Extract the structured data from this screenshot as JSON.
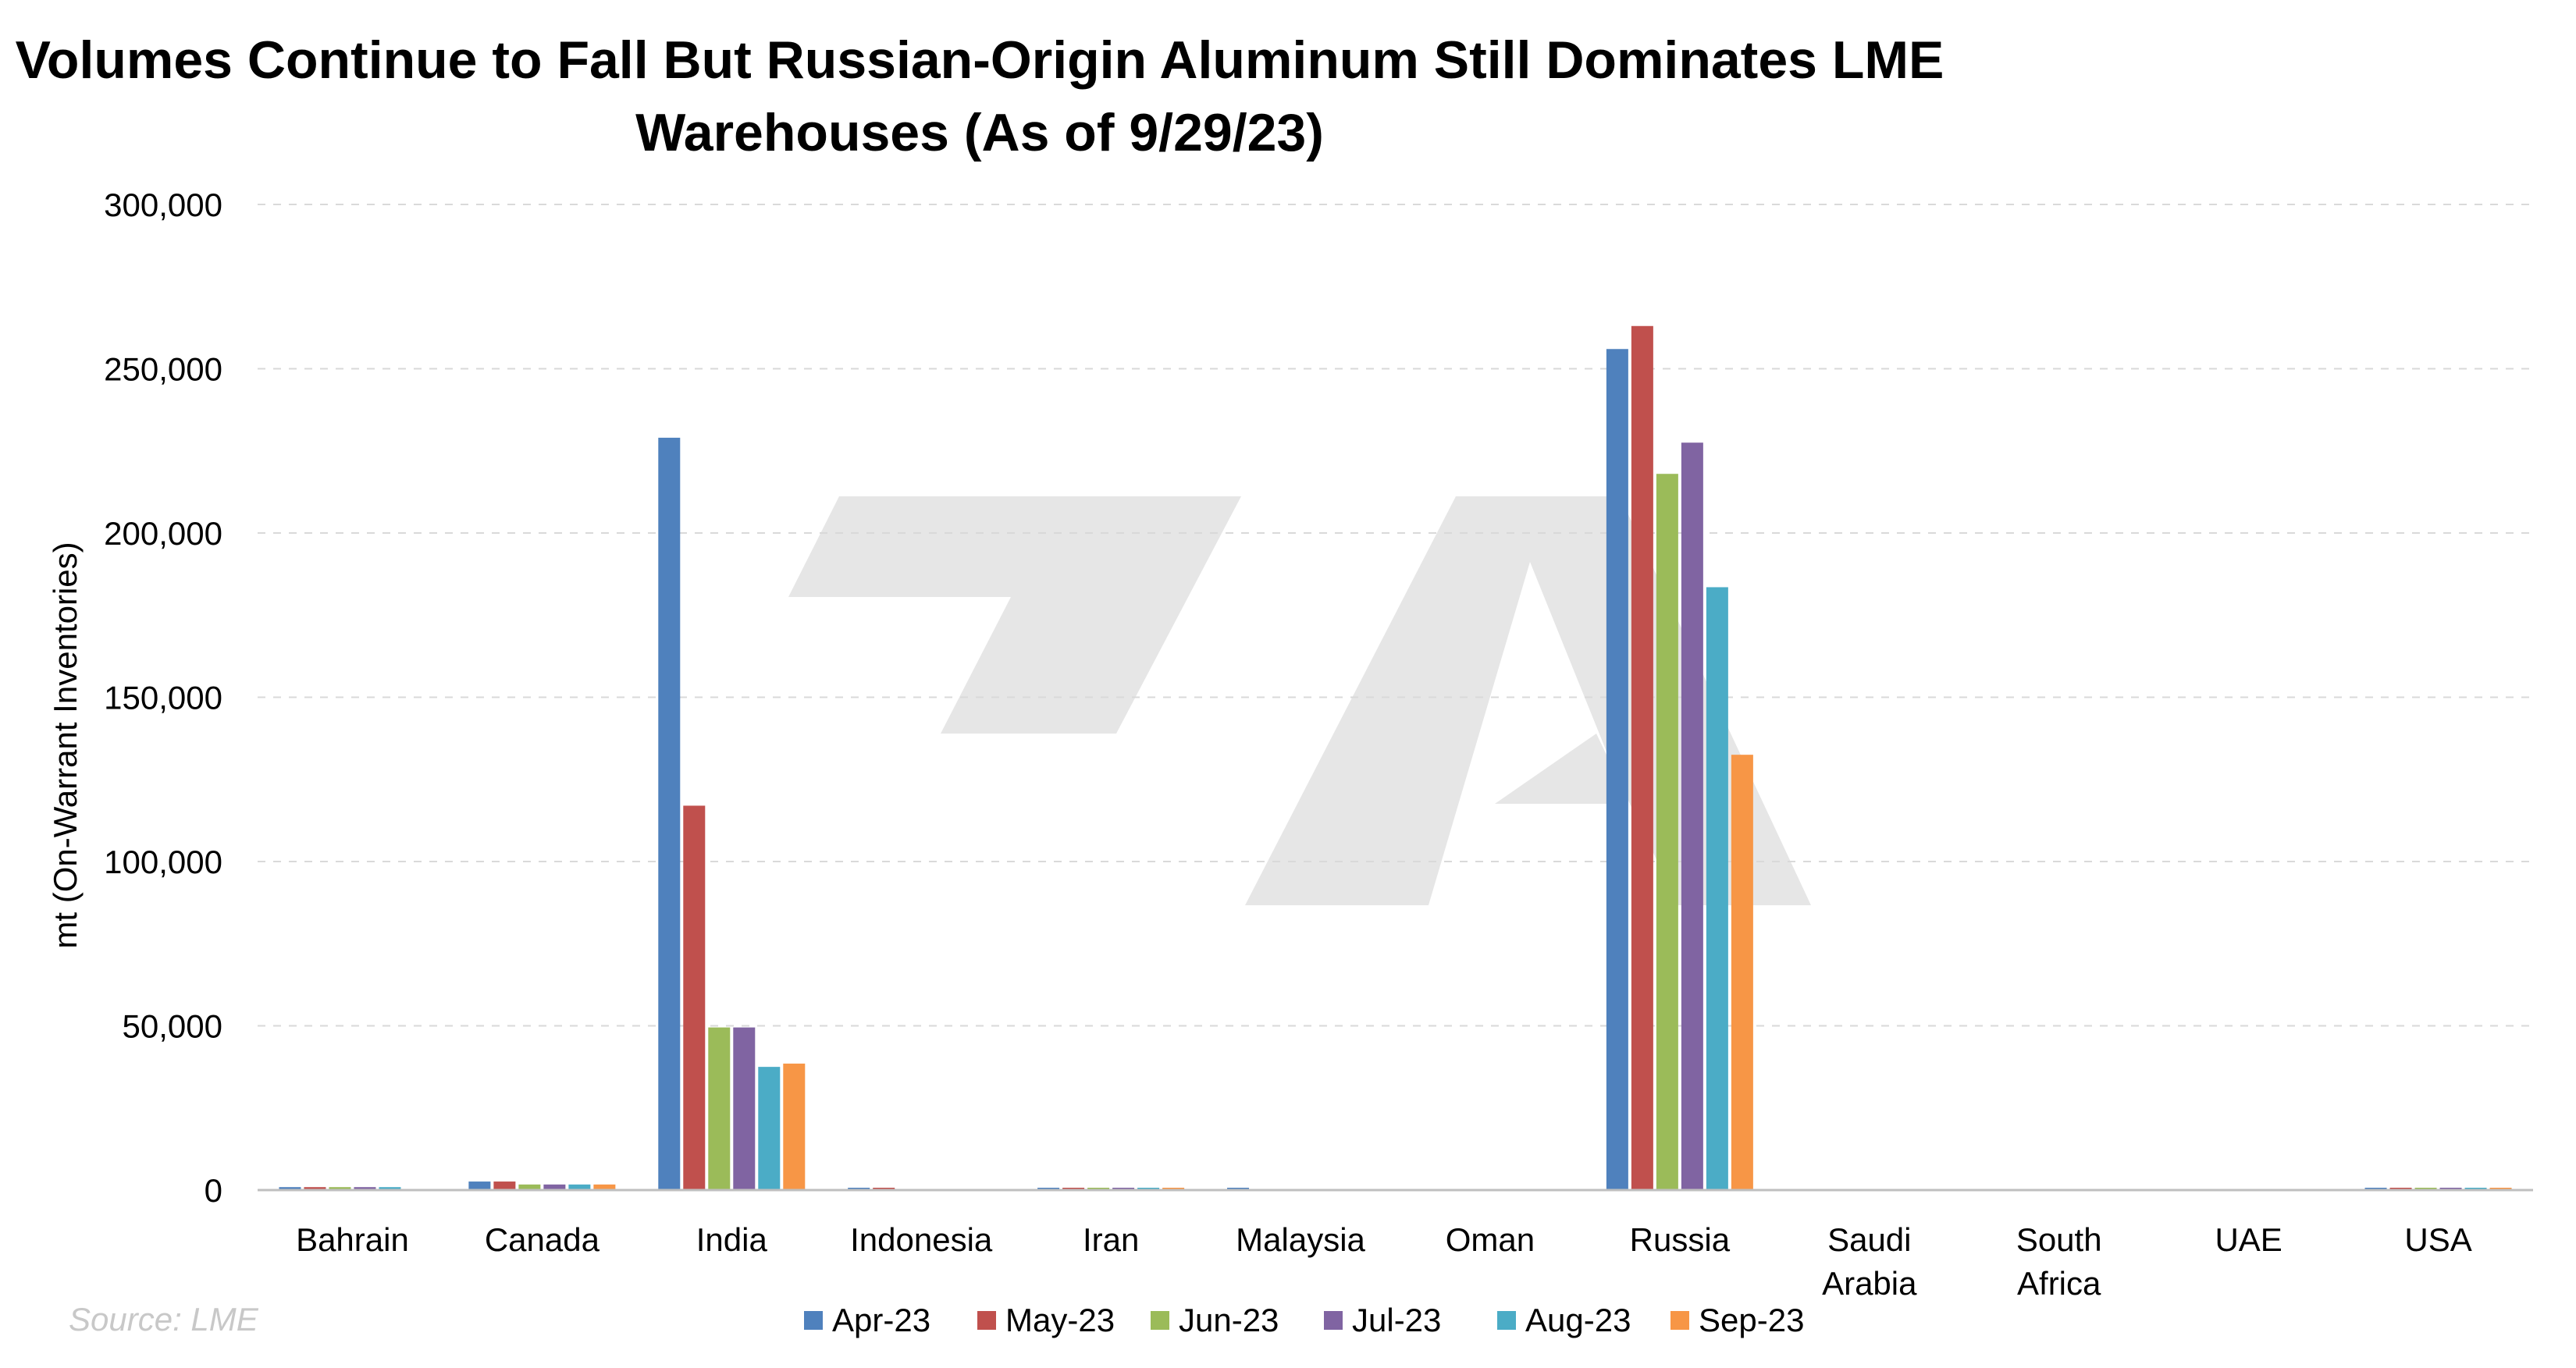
{
  "source": "Source: LME",
  "colors": {
    "gridline": "#d9d9d9",
    "axis": "#bfbfbf",
    "watermark": "#e6e6e6"
  },
  "chart_data": {
    "type": "bar",
    "title_lines": [
      "Volumes Continue to Fall But Russian-Origin Aluminum Still Dominates LME",
      "Warehouses (As of 9/29/23)"
    ],
    "xlabel": "",
    "ylabel": "mt (On-Warrant Inventories)",
    "ylim": [
      0,
      300000
    ],
    "yticks": [
      0,
      50000,
      100000,
      150000,
      200000,
      250000,
      300000
    ],
    "ytick_labels": [
      "0",
      "50,000",
      "100,000",
      "150,000",
      "200,000",
      "250,000",
      "300,000"
    ],
    "grid": true,
    "legend_position": "bottom",
    "categories": [
      [
        "Bahrain"
      ],
      [
        "Canada"
      ],
      [
        "India"
      ],
      [
        "Indonesia"
      ],
      [
        "Iran"
      ],
      [
        "Malaysia"
      ],
      [
        "Oman"
      ],
      [
        "Russia"
      ],
      [
        "Saudi",
        "Arabia"
      ],
      [
        "South",
        "Africa"
      ],
      [
        "UAE"
      ],
      [
        "USA"
      ]
    ],
    "series": [
      {
        "name": "Apr-23",
        "color": "#4f81bd",
        "values": [
          900,
          2600,
          229000,
          700,
          200,
          600,
          0,
          256000,
          0,
          0,
          0,
          700
        ]
      },
      {
        "name": "May-23",
        "color": "#c0504d",
        "values": [
          900,
          2600,
          117000,
          700,
          200,
          0,
          0,
          263000,
          0,
          0,
          0,
          700
        ]
      },
      {
        "name": "Jun-23",
        "color": "#9bbb59",
        "values": [
          900,
          1700,
          49500,
          0,
          200,
          0,
          0,
          218000,
          0,
          0,
          0,
          700
        ]
      },
      {
        "name": "Jul-23",
        "color": "#8064a2",
        "values": [
          900,
          1700,
          49500,
          0,
          200,
          0,
          0,
          227500,
          0,
          0,
          0,
          700
        ]
      },
      {
        "name": "Aug-23",
        "color": "#4bacc6",
        "values": [
          900,
          1700,
          37500,
          0,
          200,
          0,
          0,
          183500,
          0,
          0,
          0,
          700
        ]
      },
      {
        "name": "Sep-23",
        "color": "#f79646",
        "values": [
          0,
          1700,
          38500,
          0,
          200,
          0,
          0,
          132500,
          0,
          0,
          0,
          700
        ]
      }
    ]
  }
}
